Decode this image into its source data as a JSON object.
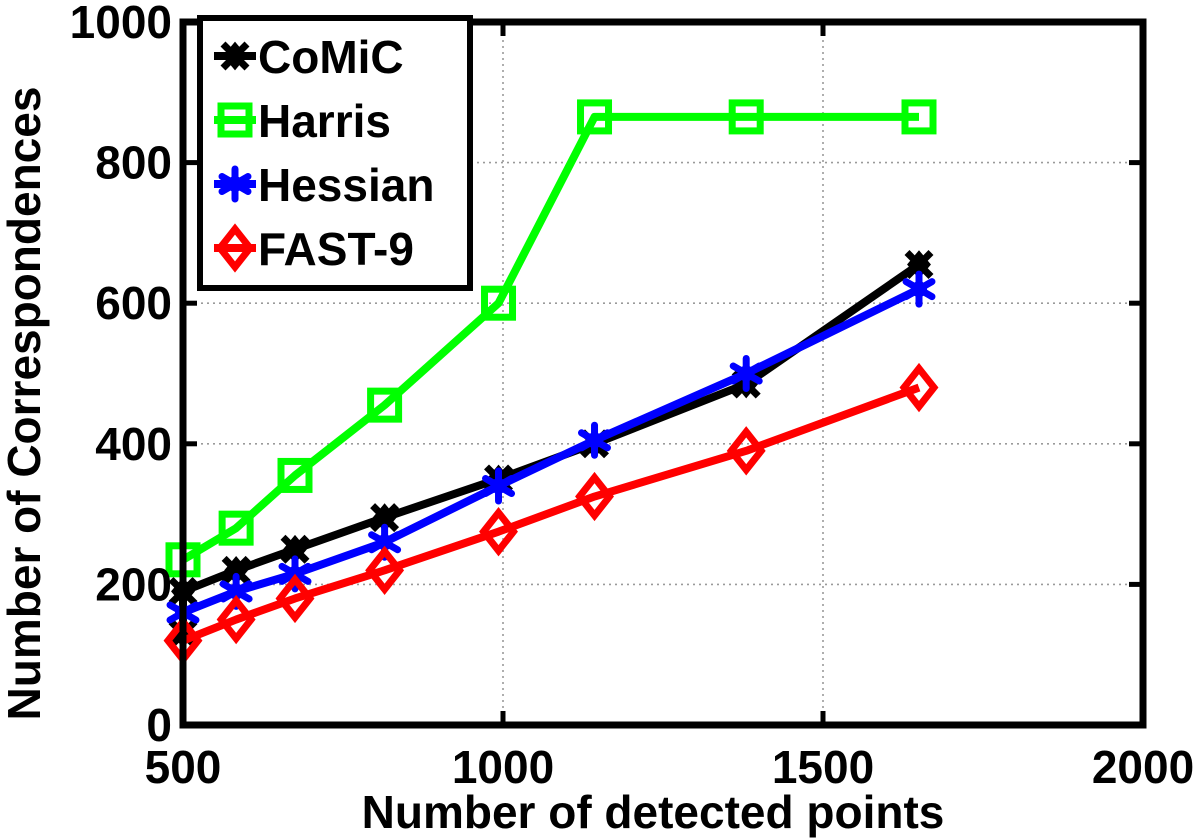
{
  "chart_data": {
    "type": "line",
    "xlabel": "Number of detected points",
    "ylabel": "Number of Correspondences",
    "xlim": [
      500,
      2000
    ],
    "ylim": [
      0,
      1000
    ],
    "xticks": [
      500,
      1000,
      1500,
      2000
    ],
    "yticks": [
      0,
      200,
      400,
      600,
      800,
      1000
    ],
    "grid": true,
    "legend_position": "top-left",
    "series": [
      {
        "name": "CoMiC",
        "color": "#000000",
        "marker": "x-diamond",
        "x": [
          500,
          500,
          583,
          675,
          815,
          993,
          1143,
          1380,
          1650
        ],
        "y": [
          130,
          190,
          220,
          250,
          295,
          350,
          400,
          485,
          655
        ]
      },
      {
        "name": "Harris",
        "color": "#00ff00",
        "marker": "square",
        "x": [
          500,
          583,
          675,
          815,
          993,
          1143,
          1380,
          1650
        ],
        "y": [
          235,
          280,
          355,
          455,
          600,
          865,
          865,
          865
        ]
      },
      {
        "name": "Hessian",
        "color": "#0000ff",
        "marker": "star",
        "x": [
          500,
          583,
          675,
          815,
          993,
          1143,
          1380,
          1650
        ],
        "y": [
          160,
          190,
          215,
          260,
          340,
          405,
          500,
          620
        ]
      },
      {
        "name": "FAST-9",
        "color": "#ff0000",
        "marker": "diamond",
        "x": [
          500,
          583,
          675,
          815,
          993,
          1143,
          1380,
          1650
        ],
        "y": [
          120,
          150,
          180,
          220,
          275,
          325,
          390,
          480
        ]
      }
    ]
  }
}
